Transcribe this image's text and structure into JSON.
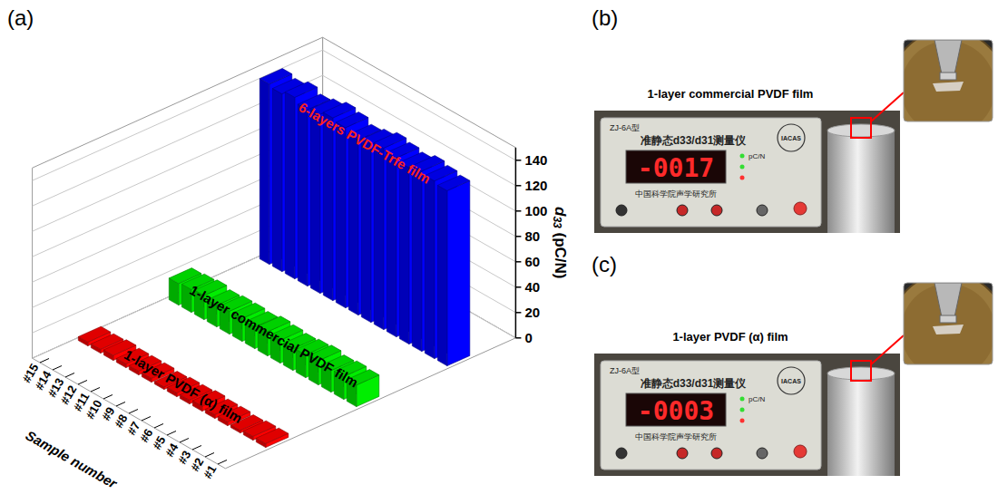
{
  "panel_labels": [
    "(a)",
    "(b)",
    "(c)"
  ],
  "chart_data": {
    "type": "bar3d",
    "x_label": "Sample number",
    "y_label": "d33 (pC/N)",
    "categories": [
      "#1",
      "#2",
      "#3",
      "#4",
      "#5",
      "#6",
      "#7",
      "#8",
      "#9",
      "#10",
      "#11",
      "#12",
      "#13",
      "#14",
      "#15"
    ],
    "series": [
      {
        "name": "1-layer PVDF (α) film",
        "color": "#ff0000",
        "values": [
          3,
          3,
          2,
          3,
          3,
          4,
          3,
          3,
          2,
          3,
          3,
          3,
          4,
          3,
          3
        ]
      },
      {
        "name": "1-layer commercial PVDF film",
        "color": "#00ee00",
        "values": [
          17,
          18,
          17,
          19,
          18,
          17,
          18,
          19,
          17,
          18,
          18,
          17,
          19,
          18,
          17
        ]
      },
      {
        "name": "6-layers PVDF-Trfe film",
        "color": "#0000ff",
        "values": [
          138,
          140,
          142,
          139,
          141,
          143,
          140,
          138,
          142,
          144,
          141,
          139,
          143,
          140,
          142
        ]
      }
    ],
    "ylim": [
      0,
      150
    ],
    "yticks": [
      0,
      20,
      40,
      60,
      80,
      100,
      120,
      140
    ],
    "grid": true
  },
  "photos": [
    {
      "caption": "1-layer commercial PVDF film",
      "reading": "-0017",
      "model": "ZJ-6A型",
      "instrument": "准静态d33/d31测量仪",
      "maker": "中国科学院声学研究所",
      "logo": "IACAS",
      "unit": "pC/N"
    },
    {
      "caption": "1-layer PVDF (α) film",
      "reading": "-0003",
      "model": "ZJ-6A型",
      "instrument": "准静态d33/d31测量仪",
      "maker": "中国科学院声学研究所",
      "logo": "IACAS",
      "unit": "pC/N"
    }
  ]
}
